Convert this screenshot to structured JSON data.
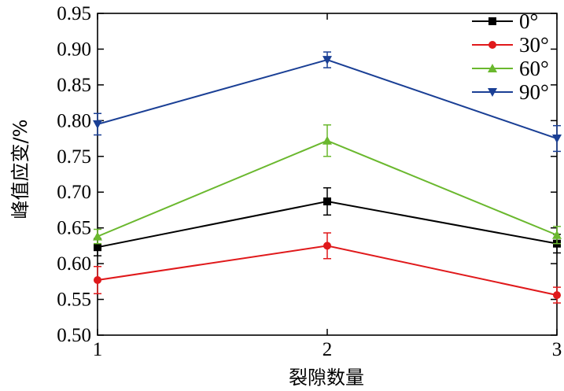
{
  "chart_data": {
    "type": "line",
    "xlabel": "裂隙数量",
    "ylabel": "峰值应变/%",
    "x": [
      1,
      2,
      3
    ],
    "x_tick_labels": [
      "1",
      "2",
      "3"
    ],
    "ylim": [
      0.5,
      0.95
    ],
    "y_ticks": [
      0.5,
      0.55,
      0.6,
      0.65,
      0.7,
      0.75,
      0.8,
      0.85,
      0.9,
      0.95
    ],
    "y_tick_labels": [
      "0.50",
      "0.55",
      "0.60",
      "0.65",
      "0.70",
      "0.75",
      "0.80",
      "0.85",
      "0.90",
      "0.95"
    ],
    "grid": false,
    "legend_position": "top-right",
    "series": [
      {
        "name": "0°",
        "color": "#000000",
        "marker": "square",
        "values": [
          0.623,
          0.687,
          0.628
        ],
        "errors": [
          0.012,
          0.019,
          0.013
        ]
      },
      {
        "name": "30°",
        "color": "#e0191b",
        "marker": "circle",
        "values": [
          0.577,
          0.625,
          0.556
        ],
        "errors": [
          0.019,
          0.018,
          0.011
        ]
      },
      {
        "name": "60°",
        "color": "#6ab82e",
        "marker": "triangle-up",
        "values": [
          0.638,
          0.772,
          0.64
        ],
        "errors": [
          0.01,
          0.022,
          0.012
        ]
      },
      {
        "name": "90°",
        "color": "#1a3f95",
        "marker": "triangle-down",
        "values": [
          0.795,
          0.885,
          0.775
        ],
        "errors": [
          0.015,
          0.011,
          0.018
        ]
      }
    ]
  }
}
